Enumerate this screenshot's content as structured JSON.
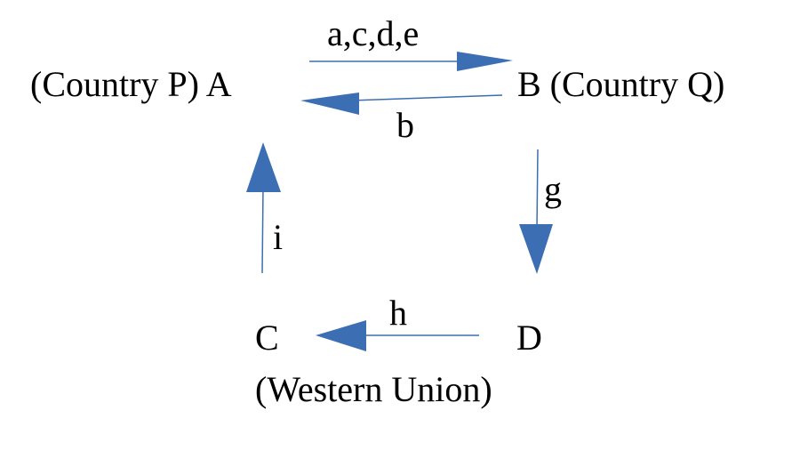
{
  "colors": {
    "arrow": "#3c6eb3",
    "text": "#000000",
    "background": "#ffffff"
  },
  "nodes": {
    "a": {
      "label": "(Country P) A"
    },
    "b": {
      "label": "B (Country Q)"
    },
    "c": {
      "label": "C"
    },
    "c_sub": {
      "label": "(Western Union)"
    },
    "d": {
      "label": "D"
    }
  },
  "edges": {
    "a_to_b": {
      "from": "A",
      "to": "B",
      "label": "a,c,d,e"
    },
    "b_to_a": {
      "from": "B",
      "to": "A",
      "label": "b"
    },
    "b_to_d": {
      "from": "B",
      "to": "D",
      "label": "g"
    },
    "d_to_c": {
      "from": "D",
      "to": "C",
      "label": "h"
    },
    "c_to_a": {
      "from": "C",
      "to": "A",
      "label": "i"
    }
  }
}
